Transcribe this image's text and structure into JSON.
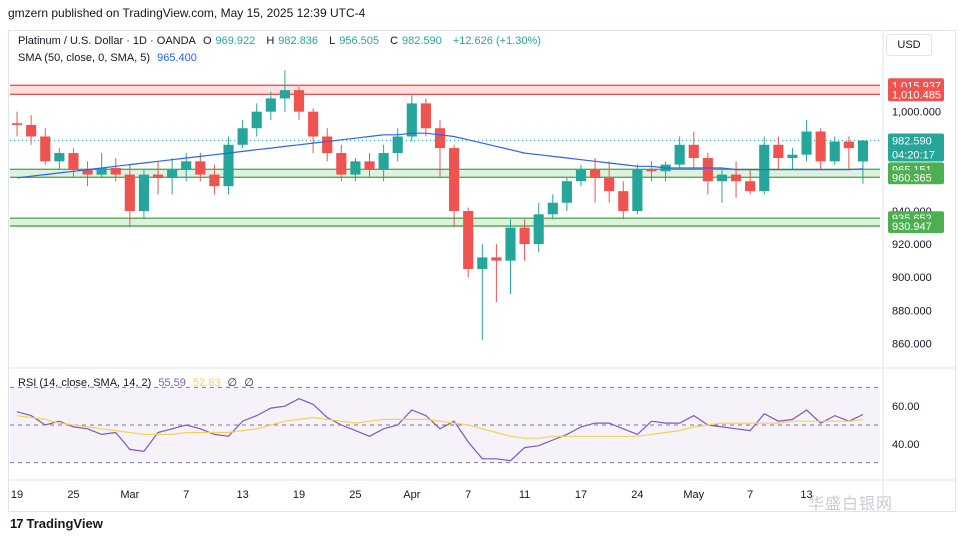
{
  "header": {
    "published": "gmzern published on TradingView.com, May 15, 2025 12:39 UTC-4"
  },
  "legend": {
    "symbol": "Platinum / U.S. Dollar · 1D · OANDA",
    "open_label": "O",
    "open": "969.922",
    "high_label": "H",
    "high": "982.836",
    "low_label": "L",
    "low": "956.505",
    "close_label": "C",
    "close": "982.590",
    "change": "+12.626 (+1.30%)",
    "sma_label": "SMA (50, close, 0, SMA, 5)",
    "sma_value": "965.400"
  },
  "rsi_legend": {
    "label": "RSI (14, close, SMA, 14, 2)",
    "rsi": "55.59",
    "rsi_ma": "52.83",
    "v3": "∅",
    "v4": "∅"
  },
  "currency": "USD",
  "footer": {
    "brand": "TradingView",
    "logo": "17"
  },
  "watermark": "华盛白银网",
  "colors": {
    "up": "#26a69a",
    "down": "#ef5350",
    "sma": "#2962ff",
    "rsi": "#7e57c2",
    "rsi_ma": "#f7d154",
    "zone_red": "#ef5350",
    "zone_green": "#4caf50"
  },
  "chart_data": {
    "type": "candlestick",
    "ylim": [
      850,
      1030
    ],
    "y_ticks": [
      860,
      880,
      900,
      920,
      940,
      1000
    ],
    "y_tick_labels": [
      "860.000",
      "880.000",
      "900.000",
      "920.000",
      "940.000",
      "1,000.000"
    ],
    "x_tick_labels": [
      "19",
      "25",
      "Mar",
      "7",
      "13",
      "19",
      "25",
      "Apr",
      "7",
      "11",
      "17",
      "24",
      "May",
      "7",
      "13"
    ],
    "x_tick_index": [
      0,
      4,
      8,
      12,
      16,
      20,
      24,
      28,
      32,
      36,
      40,
      44,
      48,
      52,
      56
    ],
    "candles": [
      [
        993,
        1000,
        985,
        992
      ],
      [
        992,
        998,
        980,
        985
      ],
      [
        985,
        990,
        968,
        970
      ],
      [
        970,
        978,
        965,
        975
      ],
      [
        975,
        978,
        960,
        965
      ],
      [
        965,
        970,
        955,
        962
      ],
      [
        962,
        975,
        960,
        966
      ],
      [
        966,
        972,
        958,
        962
      ],
      [
        962,
        968,
        930,
        940
      ],
      [
        940,
        965,
        935,
        962
      ],
      [
        962,
        970,
        950,
        960
      ],
      [
        960,
        972,
        950,
        965
      ],
      [
        965,
        975,
        958,
        970
      ],
      [
        970,
        975,
        958,
        962
      ],
      [
        962,
        968,
        950,
        955
      ],
      [
        955,
        985,
        950,
        980
      ],
      [
        980,
        995,
        978,
        990
      ],
      [
        990,
        1005,
        985,
        1000
      ],
      [
        1000,
        1012,
        995,
        1008
      ],
      [
        1008,
        1025,
        1000,
        1013
      ],
      [
        1013,
        1015,
        995,
        1000
      ],
      [
        1000,
        1002,
        975,
        985
      ],
      [
        985,
        990,
        970,
        975
      ],
      [
        975,
        980,
        958,
        962
      ],
      [
        962,
        972,
        958,
        970
      ],
      [
        970,
        975,
        960,
        965
      ],
      [
        965,
        980,
        958,
        975
      ],
      [
        975,
        990,
        970,
        985
      ],
      [
        985,
        1010,
        982,
        1005
      ],
      [
        1005,
        1008,
        985,
        990
      ],
      [
        990,
        995,
        960,
        978
      ],
      [
        978,
        980,
        930,
        940
      ],
      [
        940,
        942,
        900,
        905
      ],
      [
        905,
        920,
        862,
        912
      ],
      [
        912,
        920,
        885,
        910
      ],
      [
        910,
        935,
        890,
        930
      ],
      [
        930,
        935,
        910,
        920
      ],
      [
        920,
        945,
        915,
        938
      ],
      [
        938,
        950,
        935,
        945
      ],
      [
        945,
        960,
        940,
        958
      ],
      [
        958,
        968,
        955,
        965
      ],
      [
        965,
        972,
        945,
        960
      ],
      [
        960,
        970,
        945,
        952
      ],
      [
        952,
        958,
        935,
        940
      ],
      [
        940,
        968,
        938,
        965
      ],
      [
        965,
        970,
        958,
        964
      ],
      [
        964,
        970,
        958,
        968
      ],
      [
        968,
        985,
        965,
        980
      ],
      [
        980,
        988,
        965,
        972
      ],
      [
        972,
        975,
        950,
        958
      ],
      [
        958,
        965,
        945,
        962
      ],
      [
        962,
        970,
        948,
        958
      ],
      [
        958,
        965,
        950,
        952
      ],
      [
        952,
        985,
        950,
        980
      ],
      [
        980,
        985,
        965,
        972
      ],
      [
        972,
        978,
        965,
        974
      ],
      [
        974,
        995,
        970,
        988
      ],
      [
        988,
        990,
        965,
        970
      ],
      [
        970,
        985,
        968,
        982
      ],
      [
        982,
        985,
        965,
        978
      ],
      [
        969.922,
        982.836,
        956.505,
        982.59
      ]
    ],
    "sma_50": [
      960,
      961,
      962,
      963,
      964,
      965,
      966,
      967,
      968,
      969,
      970,
      971,
      972,
      973,
      974,
      975,
      976,
      977,
      978,
      979,
      980,
      981,
      982,
      983,
      984,
      985,
      986,
      986,
      987,
      987,
      986,
      985,
      983,
      981,
      979,
      977,
      975,
      974,
      973,
      972,
      971,
      970,
      969,
      968,
      967,
      967,
      966,
      966,
      966,
      966,
      966,
      965,
      965,
      965,
      965,
      965,
      965,
      965,
      965,
      965,
      965.4
    ],
    "price_labels": [
      {
        "value": 1015.937,
        "label": "1,015.937",
        "color": "#ef5350"
      },
      {
        "value": 1010.485,
        "label": "1,010.485",
        "color": "#ef5350"
      },
      {
        "value": 982.59,
        "label": "982.590",
        "sub": "04:20:17",
        "color": "#26a69a"
      },
      {
        "value": 965.151,
        "label": "965.151",
        "color": "#4caf50"
      },
      {
        "value": 960.365,
        "label": "960.365",
        "color": "#4caf50"
      },
      {
        "value": 935.652,
        "label": "935.652",
        "color": "#4caf50"
      },
      {
        "value": 930.947,
        "label": "930.947",
        "color": "#4caf50"
      }
    ],
    "zones": [
      {
        "from": 1010.485,
        "to": 1015.937,
        "color": "#ef5350"
      },
      {
        "from": 960.365,
        "to": 965.151,
        "color": "#4caf50"
      },
      {
        "from": 930.947,
        "to": 935.652,
        "color": "#4caf50"
      }
    ],
    "rsi": {
      "ylim": [
        25,
        75
      ],
      "y_ticks": [
        40,
        60
      ],
      "y_tick_labels": [
        "40.00",
        "60.00"
      ],
      "bands": [
        30,
        50,
        70
      ],
      "rsi": [
        57,
        55,
        50,
        52,
        49,
        48,
        45,
        46,
        37,
        36,
        46,
        48,
        50,
        48,
        45,
        44,
        52,
        55,
        59,
        60,
        64,
        61,
        54,
        50,
        47,
        44,
        48,
        50,
        58,
        55,
        48,
        52,
        41,
        32,
        32,
        31,
        38,
        39,
        42,
        45,
        49,
        51,
        51,
        48,
        45,
        52,
        51,
        51,
        55,
        50,
        49,
        48,
        47,
        56,
        52,
        53,
        58,
        51,
        55,
        52,
        55.59
      ],
      "rsi_ma": [
        55,
        54,
        53,
        51,
        50,
        49,
        48,
        47,
        46,
        45,
        45,
        45,
        46,
        46,
        46,
        46,
        47,
        48,
        50,
        52,
        53,
        54,
        53,
        52,
        51,
        52,
        53,
        53,
        53,
        53,
        52,
        51,
        50,
        48,
        46,
        44,
        43,
        43,
        44,
        44,
        44,
        44,
        44,
        44,
        44,
        45,
        46,
        47,
        49,
        50,
        51,
        51,
        51,
        51,
        51,
        52,
        52,
        52,
        52,
        52,
        52.83
      ]
    }
  }
}
